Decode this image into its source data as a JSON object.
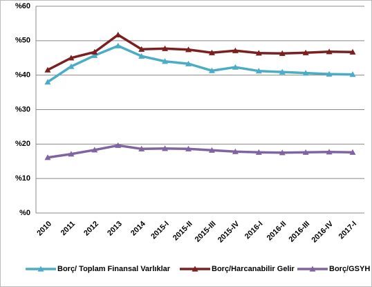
{
  "chart_data": {
    "type": "line",
    "categories": [
      "2010",
      "2011",
      "2012",
      "2013",
      "2014",
      "2015-I",
      "2015-II",
      "2015-III",
      "2015-IV",
      "2016-I",
      "2016-II",
      "2016-III",
      "2016-IV",
      "2017-I"
    ],
    "series": [
      {
        "name": "Borç/ Toplam Finansal Varlıklar",
        "color": "#4bacc6",
        "values": [
          38,
          42.5,
          45.7,
          48.5,
          45.5,
          44,
          43.3,
          41.3,
          42.3,
          41.2,
          40.9,
          40.6,
          40.3,
          40.2
        ]
      },
      {
        "name": "Borç/Harcanabilir Gelir",
        "color": "#7b1f1f",
        "values": [
          41.5,
          45,
          46.7,
          51.7,
          47.5,
          47.7,
          47.4,
          46.5,
          47.1,
          46.4,
          46.3,
          46.5,
          46.8,
          46.7
        ]
      },
      {
        "name": "Borç/GSYH",
        "color": "#8064a2",
        "values": [
          16.1,
          17.1,
          18.3,
          19.6,
          18.6,
          18.7,
          18.6,
          18.2,
          17.8,
          17.6,
          17.5,
          17.6,
          17.7,
          17.6
        ]
      }
    ],
    "ylim": [
      0,
      60
    ],
    "yticks": [
      {
        "value": 0,
        "label": "%0"
      },
      {
        "value": 10,
        "label": "%10"
      },
      {
        "value": 20,
        "label": "%20"
      },
      {
        "value": 30,
        "label": "%30"
      },
      {
        "value": 40,
        "label": "%40"
      },
      {
        "value": 50,
        "label": "%50"
      },
      {
        "value": 60,
        "label": "%60"
      }
    ],
    "grid": true,
    "legend": "bottom"
  }
}
